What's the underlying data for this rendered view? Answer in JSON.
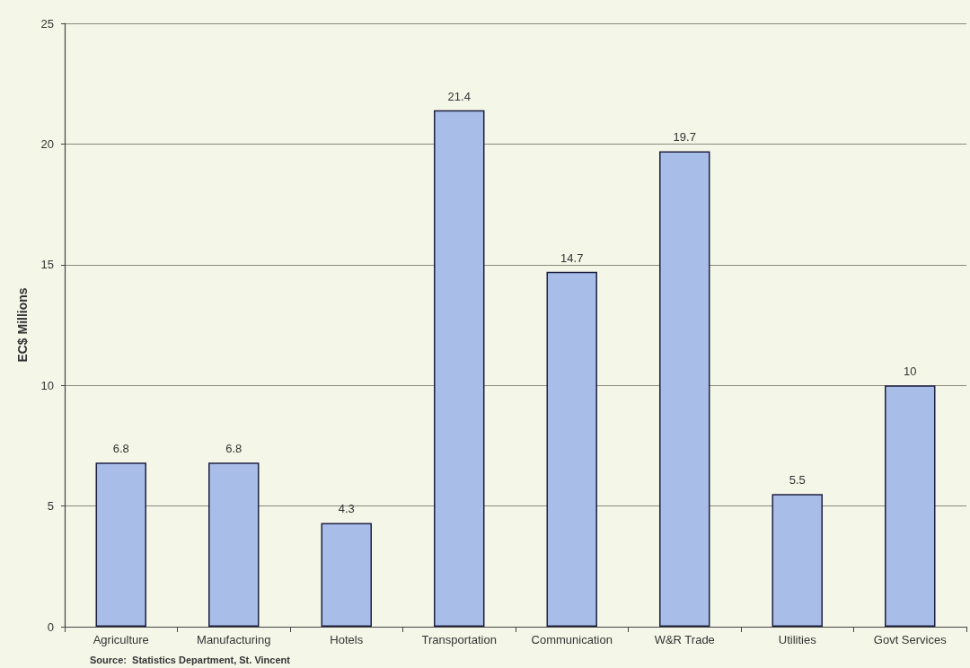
{
  "chart_data": {
    "type": "bar",
    "ylabel": "EC$ Millions",
    "categories": [
      "Agriculture",
      "Manufacturing",
      "Hotels",
      "Transportation",
      "Communication",
      "W&R Trade",
      "Utilities",
      "Govt Services"
    ],
    "values": [
      6.8,
      6.8,
      4.3,
      21.4,
      14.7,
      19.7,
      5.5,
      10
    ],
    "color": "#a9bde9",
    "ylim": [
      0,
      25
    ],
    "yticks": [
      0,
      5,
      10,
      15,
      20,
      25
    ],
    "grid": "y",
    "data_labels": true,
    "annotations": [
      "Source:  Statistics Department, St. Vincent"
    ]
  }
}
